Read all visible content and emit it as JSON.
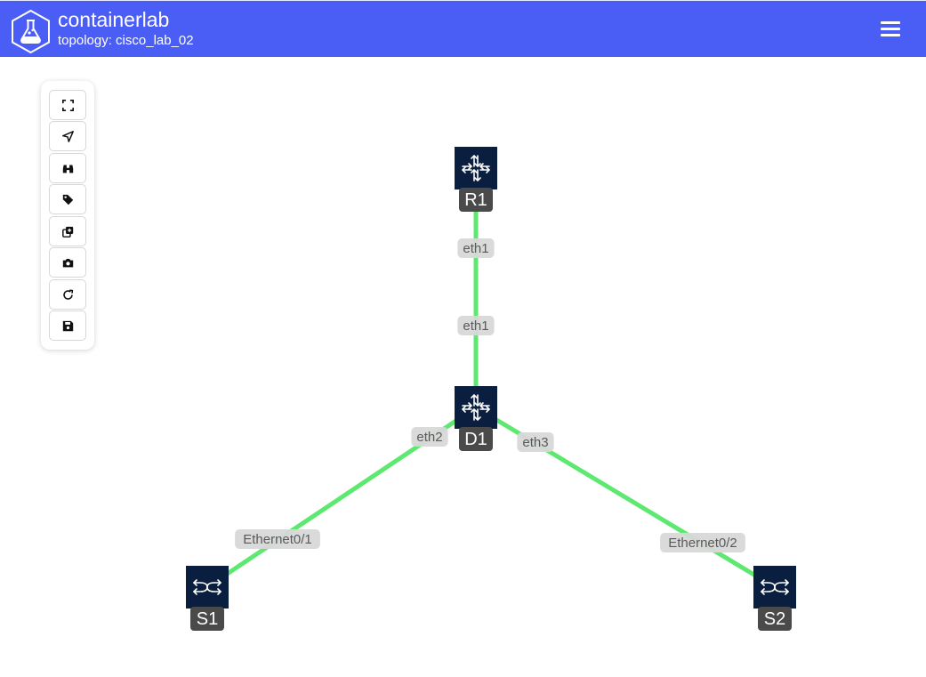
{
  "navbar": {
    "title": "containerlab",
    "subtitle": "topology: cisco_lab_02",
    "background": "#4a5ef5",
    "menu_icon": "hamburger-menu-icon",
    "logo_icon": "containerlab-flask-icon"
  },
  "toolbar": {
    "buttons": [
      {
        "name": "fit-view-button",
        "icon": "expand-icon"
      },
      {
        "name": "locate-button",
        "icon": "location-arrow-icon"
      },
      {
        "name": "find-node-button",
        "icon": "binoculars-icon"
      },
      {
        "name": "toggle-labels-button",
        "icon": "tag-icon"
      },
      {
        "name": "add-node-button",
        "icon": "clone-plus-icon"
      },
      {
        "name": "capture-button",
        "icon": "camera-icon"
      },
      {
        "name": "reload-button",
        "icon": "rotate-icon"
      },
      {
        "name": "save-button",
        "icon": "floppy-disk-icon"
      }
    ]
  },
  "topology": {
    "link_color": "#5de870",
    "node_color": "#0a1f3f",
    "nodes": [
      {
        "id": "R1",
        "label": "R1",
        "kind": "router"
      },
      {
        "id": "D1",
        "label": "D1",
        "kind": "router"
      },
      {
        "id": "S1",
        "label": "S1",
        "kind": "switch"
      },
      {
        "id": "S2",
        "label": "S2",
        "kind": "switch"
      }
    ],
    "links": [
      {
        "source": "R1",
        "target": "D1",
        "source_endpoint": "eth1",
        "target_endpoint": "eth1"
      },
      {
        "source": "D1",
        "target": "S1",
        "source_endpoint": "eth2",
        "target_endpoint": "Ethernet0/1"
      },
      {
        "source": "D1",
        "target": "S2",
        "source_endpoint": "eth3",
        "target_endpoint": "Ethernet0/2"
      }
    ]
  }
}
